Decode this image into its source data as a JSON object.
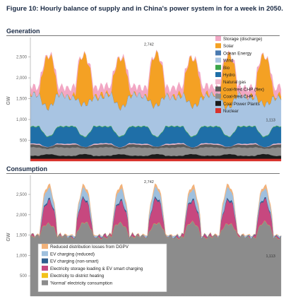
{
  "figure_title": "Figure 10: Hourly balance of supply and in China's power system in for a week in 2050.",
  "chart_data": [
    {
      "type": "area",
      "panel_title": "Generation",
      "ylabel": "GW",
      "ylim": [
        0,
        2900
      ],
      "yticks": [
        500,
        1000,
        1500,
        2000,
        2500
      ],
      "grid": false,
      "legend_position": "top-right",
      "hours": 168,
      "peak": {
        "label": "2,742",
        "hour": 79,
        "value": 2742
      },
      "trough": {
        "label": "1,113",
        "hour": 160,
        "value": 1113
      },
      "series": [
        {
          "name": "Nuclear",
          "color": "#d8332d",
          "base": 60,
          "day": 0,
          "night": 0,
          "noise": 0
        },
        {
          "name": "Coal Power Plants",
          "color": "#1b1b1b",
          "base": 70,
          "day": 40,
          "night": 0,
          "noise": 8
        },
        {
          "name": "Coal-fired CHP",
          "color": "#8c8c8c",
          "base": 130,
          "day": 0,
          "night": 70,
          "noise": 15
        },
        {
          "name": "Coal-fired CHP (flex)",
          "color": "#5a5a5a",
          "base": 40,
          "day": 0,
          "night": 30,
          "noise": 8
        },
        {
          "name": "Natural gas",
          "color": "#f2b8cc",
          "base": 0,
          "day": 0,
          "night": 25,
          "noise": 5
        },
        {
          "name": "Hydro",
          "color": "#1f6fa8",
          "base": 240,
          "day": 0,
          "night": 160,
          "noise": 25
        },
        {
          "name": "Bio",
          "color": "#3aa64a",
          "base": 15,
          "day": 0,
          "night": 0,
          "noise": 2
        },
        {
          "name": "Wind",
          "color": "#a8c4e2",
          "base": 720,
          "day": 0,
          "night": 0,
          "noise": 120
        },
        {
          "name": "Ocean Energy",
          "color": "#4a7ab0",
          "base": 8,
          "day": 0,
          "night": 0,
          "noise": 0
        },
        {
          "name": "Solar",
          "color": "#f4a124",
          "base": 0,
          "day": 1200,
          "night": 0,
          "noise": 150
        },
        {
          "name": "Storage (discharge)",
          "color": "#f2a7c4",
          "base": 0,
          "day": 0,
          "night": 180,
          "noise": 40
        }
      ]
    },
    {
      "type": "area",
      "panel_title": "Consumption",
      "ylabel": "GW",
      "ylim": [
        0,
        2900
      ],
      "yticks": [
        500,
        1000,
        1500,
        2000,
        2500
      ],
      "grid": false,
      "legend_position": "bottom-left",
      "hours": 168,
      "peak": {
        "label": "2,742",
        "hour": 79,
        "value": 2742
      },
      "trough": {
        "label": "1,113",
        "hour": 160,
        "value": 1113
      },
      "series": [
        {
          "name": "'Normal' electricity consumption",
          "color": "#8c8c8c",
          "base": 1450,
          "day": 350,
          "night": 0,
          "noise": 60
        },
        {
          "name": "Electricity to district heating",
          "color": "#f2c21b",
          "base": 5,
          "day": 0,
          "night": 0,
          "noise": 2
        },
        {
          "name": "Electricity storage loading & EV smart charging",
          "color": "#c7487f",
          "base": 0,
          "day": 550,
          "night": 0,
          "noise": 100
        },
        {
          "name": "EV charging (non-smart)",
          "color": "#2e5e8e",
          "base": 10,
          "day": 30,
          "night": 0,
          "noise": 10
        },
        {
          "name": "EV charging (reduced)",
          "color": "#9fc0de",
          "base": 0,
          "day": 250,
          "night": 0,
          "noise": 60
        },
        {
          "name": "Reduced distribution losses from DGPV",
          "color": "#f2b27a",
          "base": 0,
          "day": 80,
          "night": 0,
          "noise": 30
        }
      ]
    }
  ]
}
